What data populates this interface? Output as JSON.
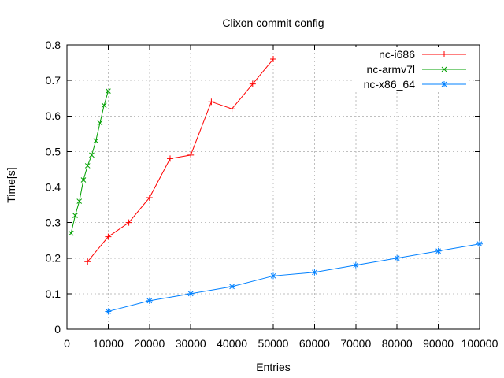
{
  "chart_data": {
    "type": "line",
    "title": "Clixon commit config",
    "xlabel": "Entries",
    "ylabel": "Time[s]",
    "xlim": [
      0,
      100000
    ],
    "ylim": [
      0,
      0.8
    ],
    "grid": true,
    "legend_position": "top-right-inside",
    "colors": {
      "background": "#ffffff",
      "grid": "#bfbfbf",
      "axis": "#000000",
      "text": "#000000"
    },
    "xticks": {
      "values": [
        0,
        10000,
        20000,
        30000,
        40000,
        50000,
        60000,
        70000,
        80000,
        90000,
        100000
      ],
      "labels": [
        "0",
        "10000",
        "20000",
        "30000",
        "40000",
        "50000",
        "60000",
        "70000",
        "80000",
        "90000",
        "100000"
      ]
    },
    "yticks": {
      "values": [
        0,
        0.1,
        0.2,
        0.3,
        0.4,
        0.5,
        0.6,
        0.7,
        0.8
      ],
      "labels": [
        "0",
        "0.1",
        "0.2",
        "0.3",
        "0.4",
        "0.5",
        "0.6",
        "0.7",
        "0.8"
      ]
    },
    "series": [
      {
        "name": "nc-i686",
        "color": "#ff0000",
        "marker": "plus",
        "x": [
          5000,
          10000,
          15000,
          20000,
          25000,
          30000,
          35000,
          40000,
          45000,
          50000
        ],
        "y": [
          0.19,
          0.26,
          0.3,
          0.37,
          0.48,
          0.49,
          0.64,
          0.62,
          0.69,
          0.76
        ]
      },
      {
        "name": "nc-armv7l",
        "color": "#00a000",
        "marker": "cross",
        "x": [
          1000,
          2000,
          3000,
          4000,
          5000,
          6000,
          7000,
          8000,
          9000,
          10000
        ],
        "y": [
          0.27,
          0.32,
          0.36,
          0.42,
          0.46,
          0.49,
          0.53,
          0.58,
          0.63,
          0.67
        ]
      },
      {
        "name": "nc-x86_64",
        "color": "#0080ff",
        "marker": "asterisk",
        "x": [
          10000,
          20000,
          30000,
          40000,
          50000,
          60000,
          70000,
          80000,
          90000,
          100000
        ],
        "y": [
          0.05,
          0.08,
          0.1,
          0.12,
          0.15,
          0.16,
          0.18,
          0.2,
          0.22,
          0.24
        ]
      }
    ]
  }
}
